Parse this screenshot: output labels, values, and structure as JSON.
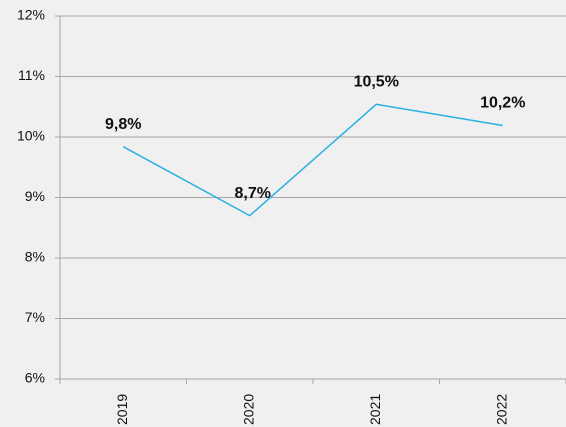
{
  "chart_data": {
    "type": "line",
    "categories": [
      "2019",
      "2020",
      "2021",
      "2022"
    ],
    "values": [
      9.84,
      8.7,
      10.54,
      10.19
    ],
    "value_labels": [
      "9,8%",
      "8,7%",
      "10,5%",
      "10,2%"
    ],
    "color": "#29b0e3",
    "ylim": [
      6,
      12
    ],
    "yticks": [
      {
        "value": 6,
        "label": "6%"
      },
      {
        "value": 7,
        "label": "7%"
      },
      {
        "value": 8,
        "label": "8%"
      },
      {
        "value": 9,
        "label": "9%"
      },
      {
        "value": 10,
        "label": "10%"
      },
      {
        "value": 11,
        "label": "11%"
      },
      {
        "value": 12,
        "label": "12%"
      }
    ],
    "grid": true
  }
}
